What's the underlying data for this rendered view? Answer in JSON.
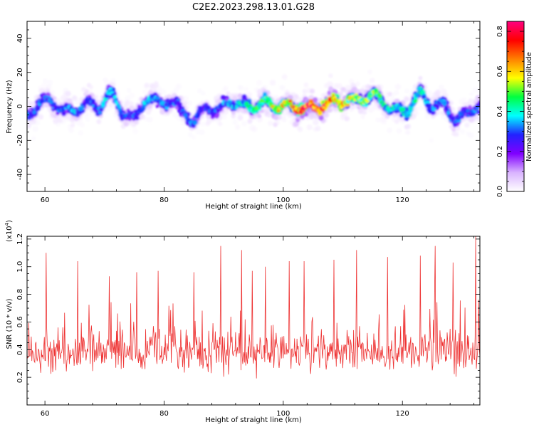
{
  "title": "C2E2.2023.298.13.01.G28",
  "chart_data": [
    {
      "type": "heatmap",
      "xlabel": "Height of straight line (km)",
      "ylabel": "Frequency (Hz)",
      "xlim": [
        57,
        133
      ],
      "ylim": [
        -50,
        50
      ],
      "xticks": [
        "60",
        "80",
        "100",
        "120"
      ],
      "xtick_values": [
        60,
        80,
        100,
        120
      ],
      "yticks": [
        "-40",
        "-20",
        "0",
        "20",
        "40"
      ],
      "ytick_values": [
        -40,
        -20,
        0,
        20,
        40
      ],
      "colorbar": {
        "label": "Normalized spectral amplitude",
        "range": [
          0,
          0.85
        ],
        "ticks": [
          "0.0",
          "0.2",
          "0.4",
          "0.6",
          "0.8"
        ],
        "tick_values": [
          0.0,
          0.2,
          0.4,
          0.6,
          0.8
        ],
        "colors": [
          "#ffffff",
          "#d9b3ff",
          "#8000ff",
          "#2222ff",
          "#00ffff",
          "#00ff40",
          "#ffff00",
          "#ff8000",
          "#ff0000",
          "#ff0080"
        ]
      },
      "ridge": {
        "x": [
          57,
          59,
          61,
          63,
          65,
          67,
          69,
          71,
          73,
          75,
          77,
          79,
          81,
          83,
          85,
          87,
          89,
          91,
          93,
          95,
          97,
          99,
          101,
          103,
          105,
          107,
          109,
          111,
          113,
          115,
          117,
          119,
          121,
          123,
          125,
          127,
          129,
          131,
          133
        ],
        "y": [
          -6,
          2,
          3,
          -2,
          -3,
          2,
          -1,
          8,
          -3,
          -8,
          5,
          2,
          3,
          -2,
          -10,
          0,
          -3,
          3,
          0,
          0,
          2,
          0,
          0,
          -1,
          -1,
          1,
          3,
          3,
          4,
          7,
          2,
          -3,
          -2,
          8,
          0,
          1,
          -8,
          -4,
          2
        ],
        "amplitude": [
          0.3,
          0.28,
          0.3,
          0.28,
          0.32,
          0.3,
          0.28,
          0.35,
          0.3,
          0.28,
          0.32,
          0.3,
          0.3,
          0.28,
          0.3,
          0.25,
          0.28,
          0.32,
          0.35,
          0.42,
          0.45,
          0.55,
          0.62,
          0.72,
          0.75,
          0.72,
          0.6,
          0.5,
          0.48,
          0.45,
          0.4,
          0.38,
          0.4,
          0.36,
          0.32,
          0.3,
          0.28,
          0.28,
          0.3
        ]
      }
    },
    {
      "type": "line",
      "xlabel": "Height of straight line (km)",
      "ylabel": "SNR (10 * v/v)",
      "multiplier": "(x10",
      "multiplier_exp": "4",
      "xlim": [
        57,
        133
      ],
      "ylim": [
        0.0,
        1.22
      ],
      "xticks": [
        "60",
        "80",
        "100",
        "120"
      ],
      "xtick_values": [
        60,
        80,
        100,
        120
      ],
      "yticks": [
        "0.2",
        "0.4",
        "0.6",
        "0.8",
        "1.0",
        "1.2"
      ],
      "ytick_values": [
        0.2,
        0.4,
        0.6,
        0.8,
        1.0,
        1.2
      ],
      "series": [
        {
          "color": "#ee3333",
          "sampling_step_km": 0.1,
          "baseline": 0.38,
          "peaks": [
            {
              "x": 60.2,
              "y": 1.1
            },
            {
              "x": 65.5,
              "y": 1.04
            },
            {
              "x": 70.8,
              "y": 0.93
            },
            {
              "x": 75.4,
              "y": 0.96
            },
            {
              "x": 79.0,
              "y": 0.97
            },
            {
              "x": 85.0,
              "y": 0.96
            },
            {
              "x": 89.5,
              "y": 1.15
            },
            {
              "x": 93.0,
              "y": 1.12
            },
            {
              "x": 94.8,
              "y": 0.97
            },
            {
              "x": 97.0,
              "y": 1.0
            },
            {
              "x": 101.0,
              "y": 1.04
            },
            {
              "x": 103.5,
              "y": 1.04
            },
            {
              "x": 108.5,
              "y": 1.05
            },
            {
              "x": 112.3,
              "y": 1.12
            },
            {
              "x": 117.5,
              "y": 1.07
            },
            {
              "x": 123.0,
              "y": 1.08
            },
            {
              "x": 125.5,
              "y": 1.15
            },
            {
              "x": 128.5,
              "y": 1.03
            },
            {
              "x": 132.3,
              "y": 1.22
            }
          ]
        }
      ]
    }
  ]
}
